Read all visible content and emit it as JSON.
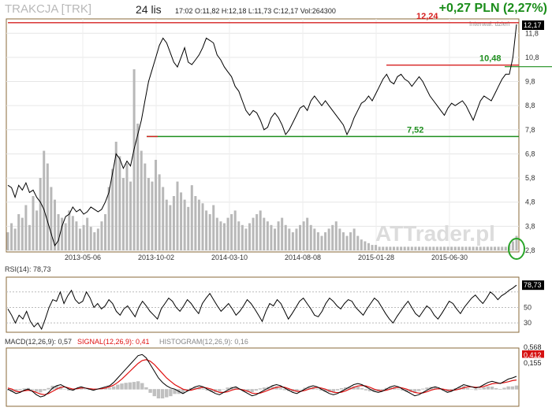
{
  "header": {
    "ticker": "TRAKCJA [TRK]",
    "period": "24 lis",
    "quote": "17:02  O:11,82  H:12,18  L:11,73  C:12,17  Vol:264300",
    "change": "+0,27 PLN (2,27%)",
    "interval_label": "Interwał: dzień"
  },
  "watermark": "ATTrader.pl",
  "colors": {
    "price": "#000000",
    "red_line": "#d62020",
    "green_line": "#1f8f1f",
    "volume": "#b8b8b8",
    "macd": "#000000",
    "signal": "#e01010",
    "histogram": "#c0c0c0",
    "frame": "#8a6a3a"
  },
  "chart_data": [
    {
      "type": "line",
      "panel": "price",
      "x_tick_labels": [
        "2013-05-06",
        "2013-10-02",
        "2014-03-10",
        "2014-08-08",
        "2015-01-28",
        "2015-06-30"
      ],
      "y_tick_labels": [
        "2,8",
        "3,8",
        "4,8",
        "5,8",
        "6,8",
        "7,8",
        "8,8",
        "9,8",
        "10,8",
        "11,8"
      ],
      "ylim": [
        2.8,
        12.2
      ],
      "last_price_label": "12,17",
      "annotations": [
        {
          "label": "12,24",
          "value": 12.24,
          "color": "red"
        },
        {
          "label": "10,48",
          "value": 10.48,
          "color": "green"
        },
        {
          "label": "7,52",
          "value": 7.52,
          "color": "green"
        }
      ],
      "series": [
        {
          "values": [
            5.5,
            5.4,
            5.0,
            5.5,
            5.3,
            5.6,
            5.2,
            5.3,
            5.0,
            4.8,
            4.5,
            4.0,
            3.5,
            3.0,
            3.2,
            3.8,
            4.2,
            4.3,
            4.6,
            4.4,
            4.5,
            4.3,
            4.4,
            4.6,
            4.5,
            4.4,
            4.5,
            4.8,
            5.2,
            6.0,
            6.8,
            6.6,
            6.2,
            6.5,
            6.3,
            7.0,
            7.6,
            8.2,
            9.0,
            9.8,
            10.3,
            10.8,
            11.3,
            11.6,
            11.4,
            11.0,
            10.6,
            10.4,
            10.8,
            11.2,
            10.6,
            10.5,
            10.7,
            10.9,
            11.2,
            11.6,
            11.5,
            11.4,
            10.9,
            10.7,
            10.4,
            10.2,
            10.0,
            9.6,
            9.4,
            9.0,
            8.6,
            8.4,
            8.6,
            8.5,
            8.2,
            7.8,
            7.9,
            8.3,
            8.5,
            8.3,
            8.0,
            7.6,
            7.8,
            8.1,
            8.4,
            8.7,
            8.8,
            8.6,
            9.0,
            9.2,
            9.0,
            8.8,
            9.0,
            8.8,
            8.6,
            8.4,
            8.2,
            8.0,
            7.6,
            7.9,
            8.3,
            8.6,
            8.9,
            9.0,
            9.2,
            9.0,
            9.3,
            9.6,
            9.9,
            10.1,
            9.8,
            9.7,
            10.0,
            10.1,
            9.9,
            9.8,
            9.6,
            9.8,
            10.0,
            9.8,
            9.5,
            9.2,
            9.0,
            8.8,
            8.6,
            8.4,
            8.7,
            8.9,
            8.8,
            8.9,
            9.0,
            8.8,
            8.5,
            8.2,
            8.6,
            9.0,
            9.2,
            9.1,
            9.0,
            9.3,
            9.6,
            9.9,
            10.1,
            10.1,
            10.8,
            12.17
          ]
        }
      ]
    },
    {
      "type": "bar",
      "panel": "volume",
      "series": [
        {
          "values": [
            10,
            15,
            12,
            20,
            18,
            25,
            14,
            30,
            22,
            40,
            55,
            48,
            35,
            28,
            20,
            18,
            15,
            22,
            19,
            16,
            12,
            14,
            18,
            13,
            10,
            12,
            16,
            20,
            35,
            45,
            60,
            52,
            40,
            48,
            38,
            100,
            70,
            55,
            48,
            40,
            38,
            50,
            42,
            35,
            28,
            25,
            30,
            38,
            32,
            28,
            24,
            36,
            30,
            28,
            26,
            22,
            20,
            25,
            18,
            16,
            15,
            18,
            20,
            22,
            16,
            14,
            12,
            15,
            18,
            20,
            22,
            18,
            16,
            14,
            12,
            16,
            18,
            14,
            12,
            10,
            12,
            14,
            16,
            18,
            14,
            12,
            10,
            8,
            10,
            12,
            14,
            16,
            12,
            10,
            8,
            10,
            12,
            8,
            6,
            5,
            4,
            3,
            3,
            2,
            2,
            2,
            2,
            2,
            2,
            2,
            2,
            2,
            2,
            2,
            2,
            2,
            2,
            2,
            2,
            2,
            2,
            2,
            2,
            2,
            2,
            2,
            2,
            2,
            2,
            2,
            2,
            2,
            2,
            2,
            2,
            2,
            2,
            2,
            2,
            3,
            5,
            8
          ]
        }
      ]
    },
    {
      "type": "line",
      "panel": "rsi",
      "label": "RSI(14): 78,73",
      "y_tick_labels": [
        "30",
        "50",
        "78,73"
      ],
      "ylim": [
        20,
        85
      ],
      "series": [
        {
          "values": [
            48,
            40,
            30,
            40,
            35,
            45,
            32,
            25,
            30,
            22,
            35,
            50,
            60,
            58,
            70,
            55,
            65,
            72,
            60,
            55,
            58,
            70,
            62,
            50,
            55,
            48,
            52,
            60,
            55,
            45,
            40,
            48,
            52,
            45,
            38,
            50,
            58,
            52,
            45,
            40,
            35,
            48,
            55,
            62,
            58,
            50,
            45,
            52,
            60,
            55,
            48,
            42,
            55,
            62,
            68,
            60,
            52,
            45,
            50,
            55,
            48,
            40,
            45,
            52,
            60,
            55,
            48,
            40,
            32,
            45,
            55,
            52,
            60,
            55,
            45,
            35,
            42,
            50,
            58,
            62,
            55,
            48,
            40,
            38,
            45,
            55,
            62,
            58,
            52,
            48,
            55,
            60,
            58,
            50,
            45,
            40,
            48,
            55,
            62,
            58,
            50,
            42,
            35,
            30,
            38,
            45,
            52,
            58,
            50,
            42,
            38,
            45,
            52,
            48,
            40,
            35,
            42,
            50,
            58,
            55,
            48,
            42,
            50,
            56,
            62,
            66,
            60,
            55,
            62,
            70,
            66,
            60,
            65,
            68,
            72,
            75,
            78.73
          ]
        }
      ]
    },
    {
      "type": "line",
      "panel": "macd",
      "labels": {
        "macd": "MACD(12,26,9): 0,57",
        "signal": "SIGNAL(12,26,9): 0,41",
        "histogram": "HISTOGRAM(12,26,9): 0,16"
      },
      "y_tick_labels": [
        "0,568",
        "0,412",
        "0,155"
      ],
      "ylim": [
        -0.7,
        1.7
      ],
      "series": [
        {
          "name": "MACD(12,26,9)",
          "values": [
            0.0,
            -0.1,
            -0.2,
            -0.15,
            -0.05,
            0.0,
            -0.1,
            -0.25,
            -0.35,
            -0.3,
            -0.15,
            0.05,
            0.15,
            0.2,
            0.1,
            0.0,
            -0.05,
            0.05,
            0.1,
            0.05,
            0.0,
            -0.05,
            0.0,
            0.05,
            0.1,
            0.15,
            0.3,
            0.5,
            0.7,
            0.9,
            1.1,
            1.3,
            1.5,
            1.55,
            1.4,
            1.1,
            0.8,
            0.5,
            0.3,
            0.15,
            0.05,
            0.0,
            -0.1,
            -0.2,
            -0.1,
            0.0,
            0.1,
            0.15,
            0.1,
            0.0,
            -0.1,
            -0.2,
            -0.25,
            -0.15,
            -0.05,
            0.05,
            0.1,
            0.0,
            -0.1,
            -0.2,
            -0.3,
            -0.25,
            -0.15,
            -0.05,
            0.05,
            0.15,
            0.2,
            0.15,
            0.05,
            -0.05,
            -0.15,
            -0.2,
            -0.1,
            0.0,
            0.1,
            0.15,
            0.1,
            0.0,
            -0.1,
            -0.2,
            -0.25,
            -0.2,
            -0.1,
            0.0,
            0.1,
            0.2,
            0.25,
            0.2,
            0.1,
            0.0,
            -0.1,
            -0.15,
            -0.1,
            0.0,
            0.1,
            0.15,
            0.1,
            0.0,
            -0.1,
            -0.2,
            -0.3,
            -0.25,
            -0.15,
            -0.05,
            0.05,
            0.1,
            0.05,
            -0.05,
            -0.15,
            -0.1,
            0.0,
            0.1,
            0.2,
            0.15,
            0.1,
            0.05,
            0.1,
            0.2,
            0.3,
            0.35,
            0.3,
            0.25,
            0.35,
            0.45,
            0.5,
            0.57
          ]
        },
        {
          "name": "SIGNAL(12,26,9)",
          "values": [
            0.05,
            0.0,
            -0.1,
            -0.12,
            -0.08,
            -0.05,
            -0.08,
            -0.15,
            -0.22,
            -0.25,
            -0.2,
            -0.1,
            0.0,
            0.08,
            0.1,
            0.05,
            0.0,
            0.02,
            0.05,
            0.05,
            0.02,
            0.0,
            0.0,
            0.02,
            0.05,
            0.1,
            0.18,
            0.3,
            0.45,
            0.62,
            0.8,
            0.98,
            1.15,
            1.28,
            1.32,
            1.25,
            1.1,
            0.9,
            0.7,
            0.5,
            0.35,
            0.2,
            0.1,
            0.0,
            -0.05,
            -0.05,
            0.0,
            0.05,
            0.08,
            0.05,
            0.0,
            -0.08,
            -0.15,
            -0.15,
            -0.12,
            -0.05,
            0.0,
            0.0,
            -0.05,
            -0.1,
            -0.18,
            -0.2,
            -0.18,
            -0.12,
            -0.05,
            0.02,
            0.08,
            0.1,
            0.08,
            0.02,
            -0.05,
            -0.1,
            -0.1,
            -0.06,
            0.0,
            0.05,
            0.08,
            0.05,
            0.0,
            -0.08,
            -0.14,
            -0.16,
            -0.14,
            -0.08,
            0.0,
            0.08,
            0.14,
            0.16,
            0.14,
            0.08,
            0.0,
            -0.06,
            -0.08,
            -0.05,
            0.0,
            0.06,
            0.08,
            0.05,
            0.0,
            -0.08,
            -0.15,
            -0.18,
            -0.17,
            -0.12,
            -0.05,
            0.0,
            0.02,
            0.0,
            -0.05,
            -0.06,
            -0.04,
            0.0,
            0.06,
            0.1,
            0.1,
            0.08,
            0.08,
            0.12,
            0.18,
            0.24,
            0.26,
            0.26,
            0.29,
            0.33,
            0.38,
            0.41
          ]
        },
        {
          "name": "HISTOGRAM(12,26,9)",
          "values": [
            -0.05,
            -0.1,
            -0.1,
            -0.03,
            0.03,
            0.05,
            -0.02,
            -0.1,
            -0.13,
            -0.05,
            0.05,
            0.15,
            0.15,
            0.12,
            0.0,
            -0.05,
            -0.05,
            0.03,
            0.05,
            0.0,
            -0.02,
            -0.05,
            0.0,
            0.03,
            0.05,
            0.05,
            0.12,
            0.2,
            0.25,
            0.28,
            0.3,
            0.32,
            0.35,
            0.27,
            0.08,
            -0.15,
            -0.3,
            -0.4,
            -0.4,
            -0.35,
            -0.3,
            -0.2,
            -0.2,
            -0.2,
            -0.05,
            0.05,
            0.1,
            0.1,
            0.02,
            -0.05,
            -0.1,
            -0.12,
            -0.1,
            0.0,
            0.07,
            0.1,
            0.1,
            0.0,
            -0.05,
            -0.1,
            -0.12,
            -0.05,
            0.03,
            0.07,
            0.1,
            0.13,
            0.12,
            0.05,
            -0.03,
            -0.07,
            -0.1,
            -0.1,
            0.0,
            0.06,
            0.1,
            0.1,
            0.02,
            -0.05,
            -0.1,
            -0.12,
            -0.11,
            -0.04,
            0.04,
            0.08,
            0.1,
            0.12,
            0.11,
            0.04,
            -0.04,
            -0.08,
            -0.1,
            -0.09,
            -0.02,
            0.05,
            0.1,
            0.09,
            0.02,
            -0.05,
            -0.1,
            -0.12,
            -0.15,
            -0.07,
            0.02,
            0.07,
            0.1,
            0.1,
            0.03,
            -0.05,
            -0.1,
            -0.04,
            0.04,
            0.1,
            0.14,
            0.05,
            0.0,
            -0.03,
            0.02,
            0.08,
            0.12,
            0.11,
            0.04,
            -0.01,
            0.06,
            0.12,
            0.12,
            0.16
          ]
        }
      ]
    }
  ]
}
